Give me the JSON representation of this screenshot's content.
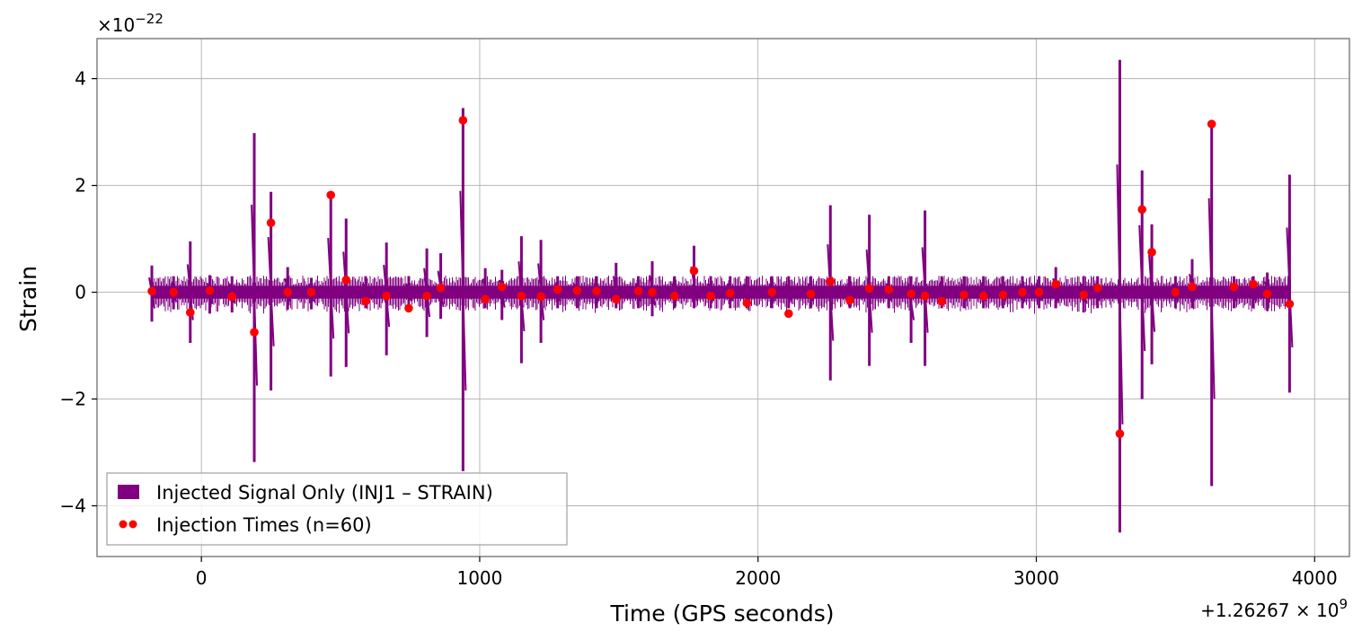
{
  "chart_data": {
    "type": "line",
    "xlabel": "Time (GPS seconds)",
    "ylabel": "Strain",
    "x_offset_label": "+1.26267 × 10",
    "x_offset_exp": "9",
    "y_scale_label": "×10",
    "y_scale_exp": "−22",
    "xlim": [
      -375,
      4125
    ],
    "ylim": [
      -4.95,
      4.75
    ],
    "x_ticks": [
      0,
      1000,
      2000,
      3000,
      4000
    ],
    "x_tick_labels": [
      "0",
      "1000",
      "2000",
      "3000",
      "4000"
    ],
    "y_ticks": [
      -4,
      -2,
      0,
      2,
      4
    ],
    "y_tick_labels": [
      "−4",
      "−2",
      "0",
      "2",
      "4"
    ],
    "grid": true,
    "legend_position": "lower-left",
    "colors": {
      "signal": "#800080",
      "markers": "#ff0000",
      "grid": "#b0b0b0",
      "frame": "#808080"
    },
    "signal_range": [
      -180,
      3915
    ],
    "baseline_band": 0.12,
    "series": [
      {
        "name": "Injected Signal Only (INJ1 – STRAIN)",
        "kind": "spikes",
        "x": [
          -178,
          -100,
          -40,
          30,
          110,
          190,
          250,
          310,
          395,
          465,
          520,
          590,
          665,
          745,
          810,
          860,
          940,
          1020,
          1080,
          1150,
          1220,
          1280,
          1350,
          1420,
          1490,
          1570,
          1620,
          1700,
          1770,
          1830,
          1900,
          1960,
          2050,
          2110,
          2190,
          2260,
          2330,
          2400,
          2470,
          2550,
          2600,
          2660,
          2740,
          2810,
          2880,
          2950,
          3010,
          3070,
          3170,
          3220,
          3300,
          3380,
          3415,
          3500,
          3560,
          3630,
          3710,
          3780,
          3830,
          3910
        ],
        "y_top": [
          0.5,
          0.3,
          0.95,
          0.32,
          0.3,
          2.98,
          1.88,
          0.47,
          0.27,
          1.85,
          1.38,
          0.3,
          0.93,
          0.3,
          0.82,
          0.73,
          3.45,
          0.45,
          0.42,
          1.05,
          0.98,
          0.3,
          0.3,
          0.3,
          0.55,
          0.3,
          0.58,
          0.3,
          0.87,
          0.3,
          0.3,
          0.3,
          0.3,
          0.3,
          0.3,
          1.63,
          0.3,
          1.45,
          0.3,
          0.3,
          1.53,
          0.3,
          0.3,
          0.3,
          0.3,
          0.3,
          0.3,
          0.47,
          0.3,
          0.3,
          4.35,
          2.28,
          1.27,
          0.3,
          0.62,
          3.2,
          0.3,
          0.3,
          0.37,
          2.2
        ],
        "y_bottom": [
          -0.55,
          -0.32,
          -0.95,
          -0.4,
          -0.38,
          -3.18,
          -1.84,
          -0.32,
          -0.32,
          -1.58,
          -1.4,
          -0.3,
          -1.18,
          -0.3,
          -0.84,
          -0.5,
          -3.35,
          -0.3,
          -0.52,
          -1.33,
          -0.95,
          -0.3,
          -0.3,
          -0.3,
          -0.3,
          -0.3,
          -0.45,
          -0.3,
          -0.3,
          -0.3,
          -0.3,
          -0.3,
          -0.3,
          -0.3,
          -0.3,
          -1.65,
          -0.3,
          -1.38,
          -0.3,
          -0.95,
          -1.38,
          -0.3,
          -0.3,
          -0.3,
          -0.3,
          -0.3,
          -0.3,
          -0.3,
          -0.38,
          -0.3,
          -4.5,
          -2.0,
          -1.35,
          -0.3,
          -0.3,
          -3.63,
          -0.3,
          -0.3,
          -0.35,
          -1.88
        ]
      },
      {
        "name": "Injection Times (n=60)",
        "kind": "scatter",
        "x": [
          -178,
          -100,
          -40,
          30,
          110,
          190,
          250,
          310,
          395,
          465,
          520,
          590,
          665,
          745,
          810,
          860,
          940,
          1020,
          1080,
          1150,
          1220,
          1280,
          1350,
          1420,
          1490,
          1570,
          1620,
          1700,
          1770,
          1830,
          1900,
          1960,
          2050,
          2110,
          2190,
          2260,
          2330,
          2400,
          2470,
          2550,
          2600,
          2660,
          2740,
          2810,
          2880,
          2950,
          3010,
          3070,
          3170,
          3220,
          3300,
          3380,
          3415,
          3500,
          3560,
          3630,
          3710,
          3780,
          3830,
          3910
        ],
        "y": [
          0.02,
          0.0,
          -0.38,
          0.03,
          -0.08,
          -0.75,
          1.3,
          0.0,
          0.0,
          1.82,
          0.23,
          -0.17,
          -0.07,
          -0.3,
          -0.07,
          0.08,
          3.22,
          -0.13,
          0.1,
          -0.07,
          -0.08,
          0.05,
          0.03,
          0.02,
          -0.13,
          0.02,
          0.0,
          -0.07,
          0.4,
          -0.07,
          -0.02,
          -0.2,
          0.0,
          -0.4,
          -0.03,
          0.2,
          -0.15,
          0.07,
          0.05,
          -0.03,
          -0.07,
          -0.17,
          -0.05,
          -0.07,
          -0.05,
          0.0,
          0.0,
          0.15,
          -0.05,
          0.08,
          -2.65,
          1.55,
          0.75,
          0.0,
          0.1,
          3.15,
          0.1,
          0.15,
          -0.03,
          -0.22
        ]
      }
    ]
  }
}
